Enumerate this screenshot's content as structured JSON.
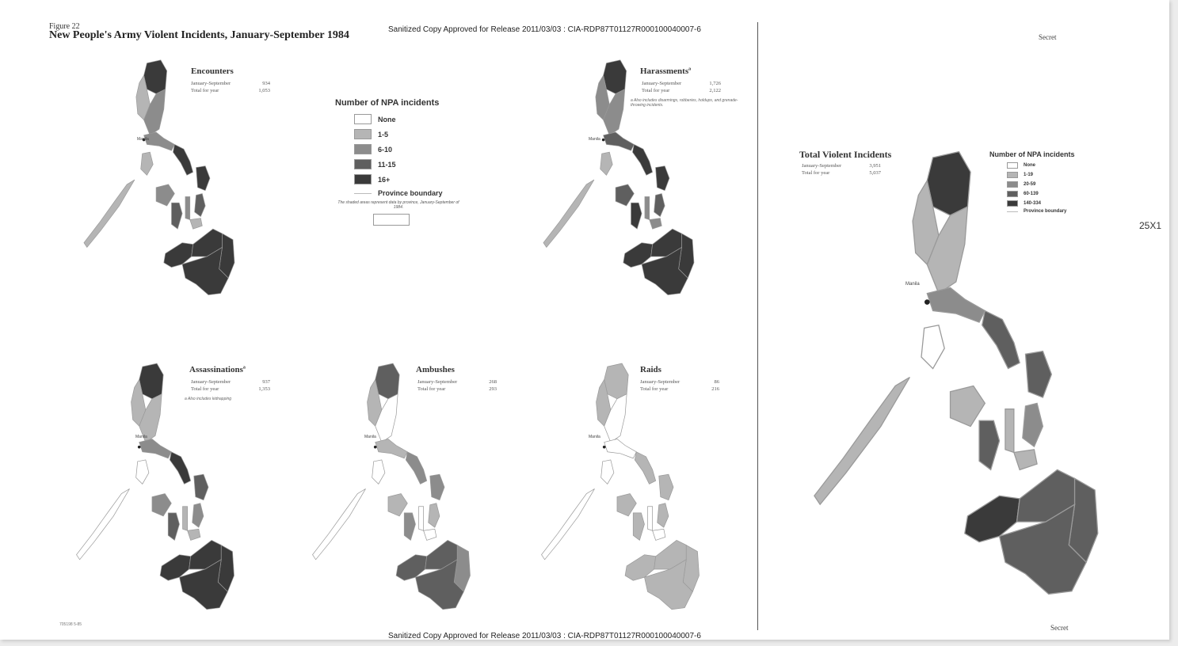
{
  "header": {
    "figure_label": "Figure 22",
    "title": "New People's Army Violent Incidents, January-September 1984",
    "sanitized_top": "Sanitized Copy Approved for Release 2011/03/03 : CIA-RDP87T01127R000100040007-6",
    "sanitized_bottom": "Sanitized Copy Approved for Release 2011/03/03 : CIA-RDP87T01127R000100040007-6",
    "secret_top": "Secret",
    "secret_bottom": "Secret",
    "redaction_code": "25X1",
    "job_code": "705198 5-85"
  },
  "colors": {
    "none": "#ffffff",
    "level1": "#b5b5b5",
    "level2": "#8c8c8c",
    "level3": "#5f5f5f",
    "level4": "#3a3a3a",
    "boundary": "#9a9a9a"
  },
  "legend_small": {
    "title": "Number of NPA incidents",
    "items": [
      "None",
      "1-5",
      "6-10",
      "11-15",
      "16+"
    ],
    "boundary_label": "Province boundary",
    "note": "The shaded areas represent data by province, January-September of 1984."
  },
  "legend_total": {
    "title": "Number of NPA incidents",
    "items": [
      "None",
      "1-19",
      "20-59",
      "60-139",
      "140-334"
    ],
    "boundary_label": "Province boundary"
  },
  "city_label": "Manila",
  "panels": [
    {
      "id": "encounters",
      "title": "Encounters",
      "row1_label": "January-September",
      "row1_value": "934",
      "row2_label": "Total for year",
      "row2_value": "1,053",
      "note": "",
      "levels": {
        "north": 4,
        "cordillera": 1,
        "central": 2,
        "luzon_south": 2,
        "bicol": 4,
        "mindoro": 1,
        "palawan": 1,
        "samar": 4,
        "leyte": 3,
        "panay": 2,
        "negros": 3,
        "cebu": 2,
        "bohol": 1,
        "mindanao_west": 4,
        "mindanao_north": 4,
        "mindanao_east": 4,
        "mindanao_south": 4
      }
    },
    {
      "id": "harassments",
      "title": "Harassments",
      "title_mark": "a",
      "row1_label": "January-September",
      "row1_value": "1,726",
      "row2_label": "Total for year",
      "row2_value": "2,122",
      "note": "a Also includes disarmings, robberies, holdups, and grenade-throwing incidents.",
      "levels": {
        "north": 4,
        "cordillera": 2,
        "central": 2,
        "luzon_south": 3,
        "bicol": 4,
        "mindoro": 1,
        "palawan": 1,
        "samar": 4,
        "leyte": 3,
        "panay": 3,
        "negros": 4,
        "cebu": 2,
        "bohol": 2,
        "mindanao_west": 4,
        "mindanao_north": 4,
        "mindanao_east": 4,
        "mindanao_south": 4
      }
    },
    {
      "id": "assassinations",
      "title": "Assassinations",
      "title_mark": "a",
      "row1_label": "January-September",
      "row1_value": "937",
      "row2_label": "Total for year",
      "row2_value": "1,353",
      "note": "a Also includes kidnapping",
      "levels": {
        "north": 4,
        "cordillera": 1,
        "central": 1,
        "luzon_south": 2,
        "bicol": 4,
        "mindoro": 0,
        "palawan": 0,
        "samar": 3,
        "leyte": 2,
        "panay": 2,
        "negros": 3,
        "cebu": 1,
        "bohol": 1,
        "mindanao_west": 4,
        "mindanao_north": 4,
        "mindanao_east": 4,
        "mindanao_south": 4
      }
    },
    {
      "id": "ambushes",
      "title": "Ambushes",
      "title_mark": "",
      "row1_label": "January-September",
      "row1_value": "268",
      "row2_label": "Total for year",
      "row2_value": "293",
      "note": "",
      "levels": {
        "north": 3,
        "cordillera": 1,
        "central": 0,
        "luzon_south": 1,
        "bicol": 2,
        "mindoro": 0,
        "palawan": 0,
        "samar": 2,
        "leyte": 1,
        "panay": 1,
        "negros": 2,
        "cebu": 0,
        "bohol": 0,
        "mindanao_west": 3,
        "mindanao_north": 3,
        "mindanao_east": 2,
        "mindanao_south": 3
      }
    },
    {
      "id": "raids",
      "title": "Raids",
      "title_mark": "",
      "row1_label": "January-September",
      "row1_value": "86",
      "row2_label": "Total for year",
      "row2_value": "216",
      "note": "",
      "levels": {
        "north": 1,
        "cordillera": 1,
        "central": 0,
        "luzon_south": 0,
        "bicol": 1,
        "mindoro": 0,
        "palawan": 0,
        "samar": 1,
        "leyte": 1,
        "panay": 1,
        "negros": 1,
        "cebu": 0,
        "bohol": 0,
        "mindanao_west": 1,
        "mindanao_north": 1,
        "mindanao_east": 1,
        "mindanao_south": 1
      }
    }
  ],
  "total_panel": {
    "title": "Total Violent Incidents",
    "row1_label": "January-September",
    "row1_value": "3,951",
    "row2_label": "Total for year",
    "row2_value": "5,037",
    "levels": {
      "north": 4,
      "cordillera": 1,
      "central": 1,
      "luzon_south": 2,
      "bicol": 3,
      "mindoro": 0,
      "palawan": 1,
      "samar": 3,
      "leyte": 2,
      "panay": 1,
      "negros": 3,
      "cebu": 1,
      "bohol": 1,
      "mindanao_west": 4,
      "mindanao_north": 3,
      "mindanao_east": 3,
      "mindanao_south": 3
    }
  }
}
